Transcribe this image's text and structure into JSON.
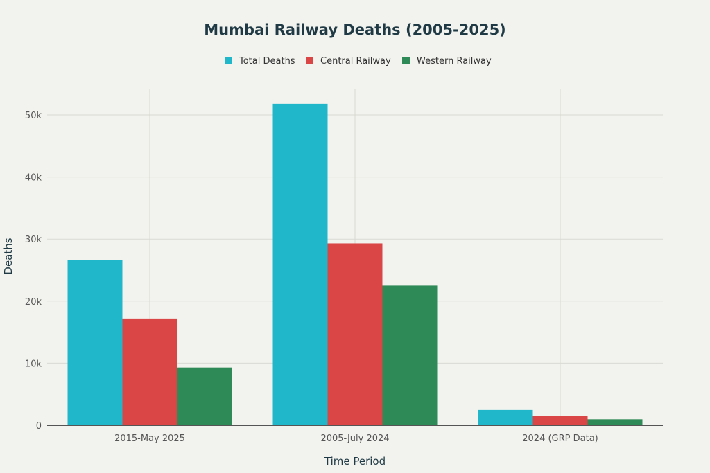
{
  "chart_data": {
    "type": "bar",
    "title": "Mumbai Railway Deaths (2005-2025)",
    "xlabel": "Time Period",
    "ylabel": "Deaths",
    "categories": [
      "2015-May 2025",
      "2005-July 2024",
      "2024 (GRP Data)"
    ],
    "series": [
      {
        "name": "Total Deaths",
        "color": "#21b7cb",
        "values": [
          26600,
          51800,
          2468
        ]
      },
      {
        "name": "Central Railway",
        "color": "#da4545",
        "values": [
          17200,
          29300,
          1500
        ]
      },
      {
        "name": "Western Railway",
        "color": "#2e8b57",
        "values": [
          9300,
          22500,
          968
        ]
      }
    ],
    "ylim": [
      0,
      55000
    ],
    "yticks": [
      0,
      10000,
      20000,
      30000,
      40000,
      50000
    ],
    "ytick_labels": [
      "0",
      "10k",
      "20k",
      "30k",
      "40k",
      "50k"
    ],
    "legend_position": "top-center",
    "grid": true
  }
}
